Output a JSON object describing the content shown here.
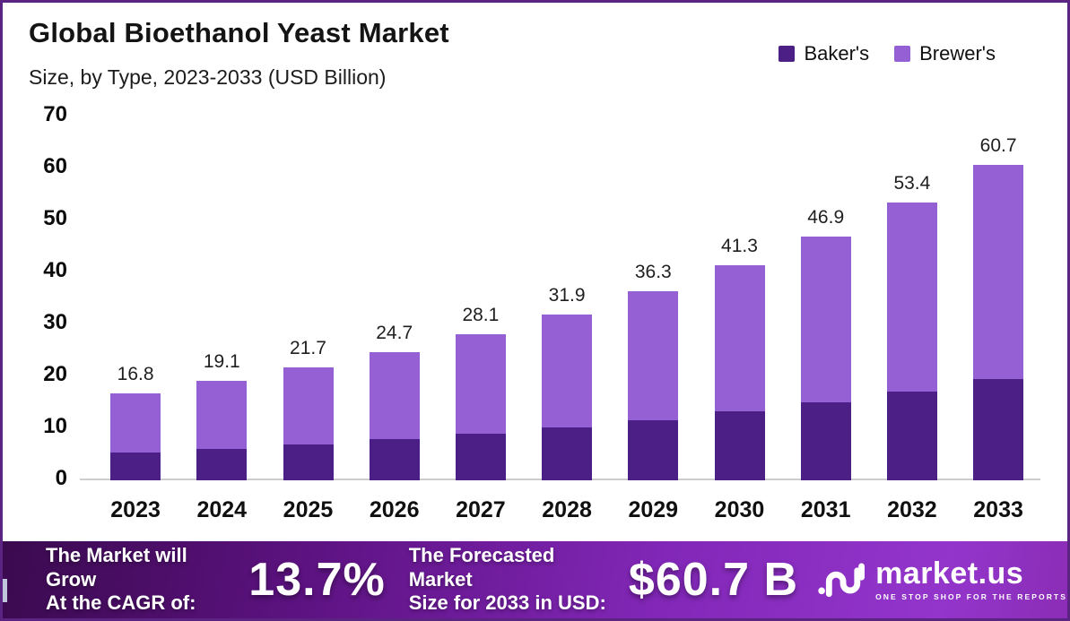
{
  "header": {
    "title": "Global Bioethanol Yeast Market",
    "subtitle": "Size, by Type, 2023-2033 (USD Billion)"
  },
  "legend": [
    {
      "label": "Baker's",
      "color": "#4b1f85"
    },
    {
      "label": "Brewer's",
      "color": "#9560d3"
    }
  ],
  "colors": {
    "bakers": "#4b1f85",
    "brewers": "#9560d3",
    "page_border": "#5b2483",
    "axis_line": "#cdcdcd",
    "banner_gradient_start": "#3a0a4e",
    "banner_gradient_end": "#8b2db6"
  },
  "chart_data": {
    "type": "bar",
    "stacked": true,
    "title": "Global Bioethanol Yeast Market",
    "subtitle": "Size, by Type, 2023-2033 (USD Billion)",
    "xlabel": "",
    "ylabel": "USD Billion",
    "ylim": [
      0,
      70
    ],
    "y_ticks": [
      0,
      10,
      20,
      30,
      40,
      50,
      60,
      70
    ],
    "grid": false,
    "legend_position": "top-right",
    "categories": [
      "2023",
      "2024",
      "2025",
      "2026",
      "2027",
      "2028",
      "2029",
      "2030",
      "2031",
      "2032",
      "2033"
    ],
    "series": [
      {
        "name": "Baker's",
        "color": "#4b1f85",
        "values": [
          5.4,
          6.1,
          6.9,
          7.9,
          9.0,
          10.2,
          11.6,
          13.2,
          15.0,
          17.1,
          19.4
        ]
      },
      {
        "name": "Brewer's",
        "color": "#9560d3",
        "values": [
          11.4,
          13.0,
          14.8,
          16.8,
          19.1,
          21.7,
          24.7,
          28.1,
          31.9,
          36.3,
          41.3
        ]
      }
    ],
    "totals": [
      16.8,
      19.1,
      21.7,
      24.7,
      28.1,
      31.9,
      36.3,
      41.3,
      46.9,
      53.4,
      60.7
    ],
    "total_labels": [
      "16.8",
      "19.1",
      "21.7",
      "24.7",
      "28.1",
      "31.9",
      "36.3",
      "41.3",
      "46.9",
      "53.4",
      "60.7"
    ]
  },
  "banner": {
    "cagr_label_line1": "The Market will Grow",
    "cagr_label_line2": "At the CAGR of:",
    "cagr_value": "13.7%",
    "forecast_label_line1": "The Forecasted Market",
    "forecast_label_line2": "Size for 2033 in USD:",
    "forecast_value": "$60.7 B",
    "logo_text": "market.us",
    "logo_tagline": "ONE STOP SHOP FOR THE REPORTS"
  }
}
